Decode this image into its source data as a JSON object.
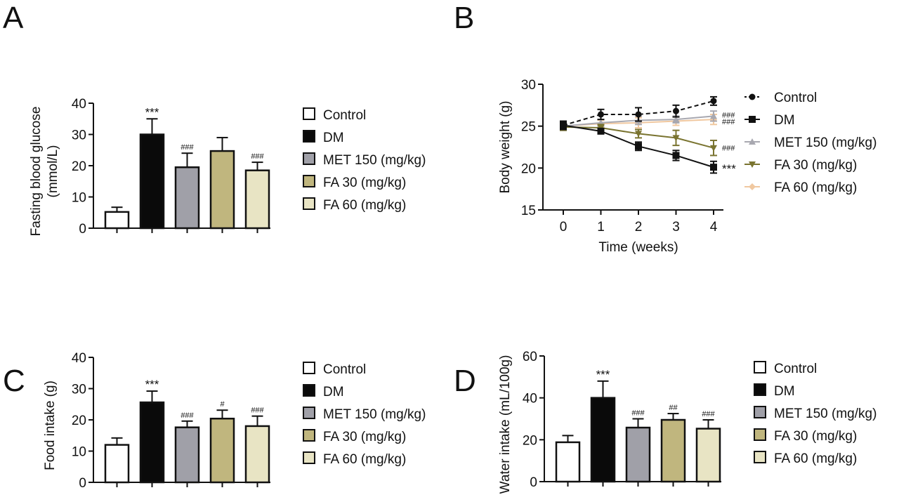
{
  "groups": [
    "Control",
    "DM",
    "MET 150 (mg/kg)",
    "FA 30 (mg/kg)",
    "FA 60 (mg/kg)"
  ],
  "colors": {
    "Control": "#ffffff",
    "DM": "#0a0a0a",
    "MET 150 (mg/kg)": "#a0a0a8",
    "FA 30 (mg/kg)": "#c0b67e",
    "FA 60 (mg/kg)": "#e8e4c4"
  },
  "line_colors": {
    "Control": "#111111",
    "DM": "#111111",
    "MET 150 (mg/kg)": "#a8a8b0",
    "FA 30 (mg/kg)": "#7a7430",
    "FA 60 (mg/kg)": "#f0c8a0"
  },
  "chart_data": [
    {
      "panel": "A",
      "type": "bar",
      "title": "",
      "xlabel": "",
      "ylabel": "Fasting blood glucose (mmol/L)",
      "ylabel_lines": [
        "Fasting blood glucose",
        "(mmol/L)"
      ],
      "ylim": [
        0,
        40
      ],
      "yticks": [
        0,
        10,
        20,
        30,
        40
      ],
      "categories": [
        "Control",
        "DM",
        "MET 150 (mg/kg)",
        "FA 30 (mg/kg)",
        "FA 60 (mg/kg)"
      ],
      "values": [
        5.2,
        30.0,
        19.5,
        24.7,
        18.5
      ],
      "errors": [
        1.5,
        5.0,
        4.5,
        4.3,
        2.6
      ],
      "annotations": [
        "",
        "***",
        "###",
        "",
        "###"
      ],
      "legend": "right"
    },
    {
      "panel": "B",
      "type": "line",
      "title": "",
      "xlabel": "Time (weeks)",
      "ylabel": "Body weight (g)",
      "x": [
        0,
        1,
        2,
        3,
        4
      ],
      "xlim": [
        0,
        4
      ],
      "ylim": [
        15,
        30
      ],
      "yticks": [
        15,
        20,
        25,
        30
      ],
      "xticks": [
        0,
        1,
        2,
        3,
        4
      ],
      "series": [
        {
          "name": "Control",
          "values": [
            25.1,
            26.4,
            26.4,
            26.8,
            28.0
          ],
          "errors": [
            0.5,
            0.6,
            0.8,
            0.7,
            0.5
          ],
          "marker": "circle",
          "dash": true,
          "end_annotation": ""
        },
        {
          "name": "DM",
          "values": [
            25.1,
            24.4,
            22.6,
            21.5,
            20.1
          ],
          "errors": [
            0.4,
            0.3,
            0.5,
            0.6,
            0.7
          ],
          "marker": "square",
          "dash": false,
          "end_annotation": "***"
        },
        {
          "name": "MET 150 (mg/kg)",
          "values": [
            25.0,
            25.4,
            25.7,
            25.8,
            26.2
          ],
          "errors": [
            0.5,
            0.4,
            0.5,
            0.4,
            0.6
          ],
          "marker": "triangle-up",
          "dash": false,
          "end_annotation": "###"
        },
        {
          "name": "FA 30 (mg/kg)",
          "values": [
            24.9,
            24.8,
            24.1,
            23.6,
            22.4
          ],
          "errors": [
            0.4,
            0.4,
            0.5,
            0.9,
            0.9
          ],
          "marker": "triangle-down",
          "dash": false,
          "end_annotation": "###"
        },
        {
          "name": "FA 60 (mg/kg)",
          "values": [
            25.0,
            25.3,
            25.4,
            25.6,
            25.8
          ],
          "errors": [
            0.4,
            0.4,
            0.6,
            0.5,
            0.6
          ],
          "marker": "diamond",
          "dash": false,
          "end_annotation": "###"
        }
      ],
      "legend": "right"
    },
    {
      "panel": "C",
      "type": "bar",
      "title": "",
      "xlabel": "",
      "ylabel": "Food intake (g)",
      "ylabel_lines": [
        "Food intake (g)"
      ],
      "ylim": [
        0,
        40
      ],
      "yticks": [
        0,
        10,
        20,
        30,
        40
      ],
      "categories": [
        "Control",
        "DM",
        "MET 150 (mg/kg)",
        "FA 30 (mg/kg)",
        "FA 60 (mg/kg)"
      ],
      "values": [
        12.0,
        25.6,
        17.6,
        20.4,
        18.0
      ],
      "errors": [
        2.2,
        3.6,
        2.0,
        2.7,
        3.2
      ],
      "annotations": [
        "",
        "***",
        "###",
        "#",
        "###"
      ],
      "legend": "right"
    },
    {
      "panel": "D",
      "type": "bar",
      "title": "",
      "xlabel": "",
      "ylabel": "Water intake (mL/100g)",
      "ylabel_lines": [
        "Water intake (mL/100g)"
      ],
      "ylim": [
        0,
        60
      ],
      "yticks": [
        0,
        20,
        40,
        60
      ],
      "categories": [
        "Control",
        "DM",
        "MET 150 (mg/kg)",
        "FA 30 (mg/kg)",
        "FA 60 (mg/kg)"
      ],
      "values": [
        18.8,
        40.0,
        25.8,
        29.5,
        25.3
      ],
      "errors": [
        3.2,
        8.0,
        4.2,
        3.0,
        4.2
      ],
      "annotations": [
        "",
        "***",
        "###",
        "##",
        "###"
      ],
      "legend": "right"
    }
  ]
}
